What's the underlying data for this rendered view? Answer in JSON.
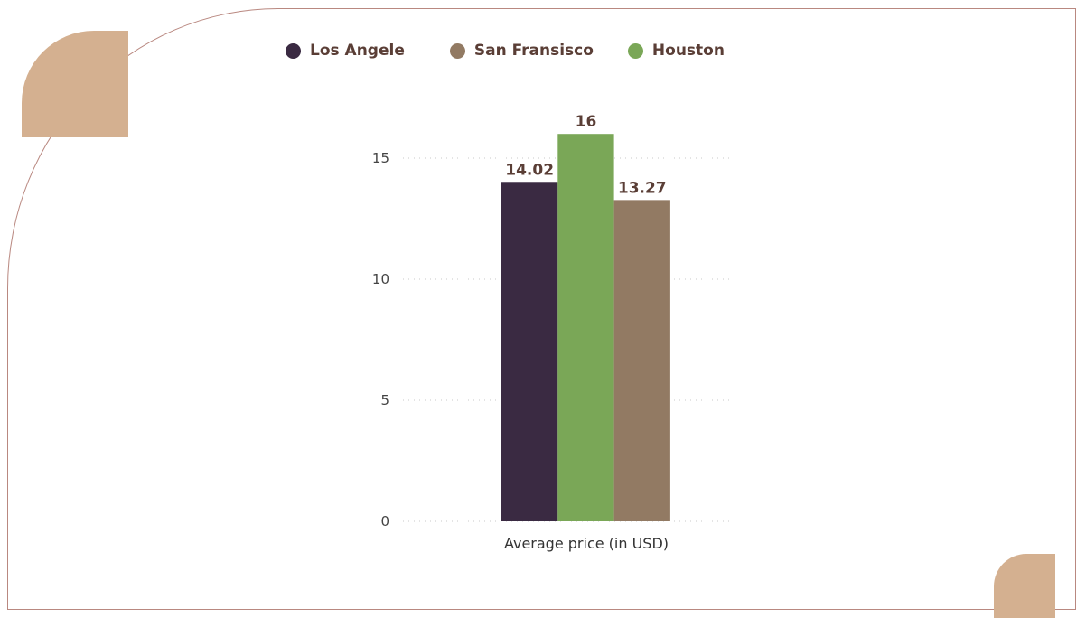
{
  "chart_data": {
    "type": "bar",
    "title": "",
    "xlabel": "Average price (in USD)",
    "ylabel": "",
    "ylim": [
      0,
      17.5
    ],
    "yticks": [
      0,
      5,
      10,
      15
    ],
    "categories": [
      "Average price (in USD)"
    ],
    "series": [
      {
        "name": "Los Angele",
        "values": [
          14.02
        ],
        "label": "14.02",
        "color": "#3a2a42"
      },
      {
        "name": "Houston",
        "values": [
          16
        ],
        "label": "16",
        "color": "#7aa757"
      },
      {
        "name": "San Fransisco",
        "values": [
          13.27
        ],
        "label": "13.27",
        "color": "#927a63"
      }
    ],
    "legend": [
      {
        "name": "Los Angele",
        "color": "#3a2a42"
      },
      {
        "name": "San Fransisco",
        "color": "#927a63"
      },
      {
        "name": "Houston",
        "color": "#7aa757"
      }
    ],
    "legend_position": "top",
    "grid": true
  }
}
